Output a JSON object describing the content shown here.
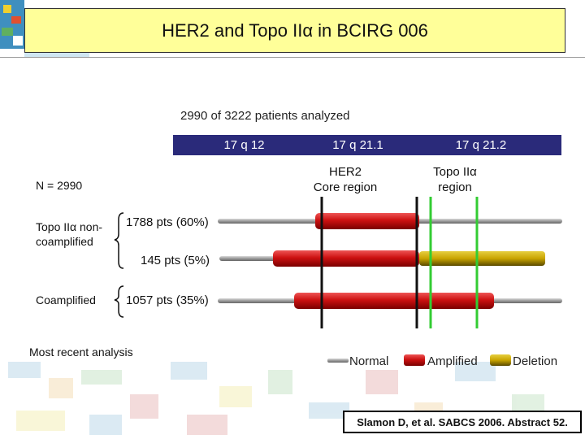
{
  "title": "HER2 and Topo IIα in BCIRG 006",
  "subtitle": "2990 of 3222 patients analyzed",
  "header": {
    "segments": [
      "17 q 12",
      "17 q 21.1",
      "17 q 21.2"
    ],
    "color": "#2a2a7a"
  },
  "regions": {
    "her2": "HER2\nCore region",
    "topo": "Topo IIα\nregion"
  },
  "n_label": "N = 2990",
  "groups": {
    "noncoamplified": "Topo IIα non-\ncoamplified",
    "coamplified": "Coamplified"
  },
  "rows": [
    {
      "label": "1788 pts (60%)"
    },
    {
      "label": "145 pts (5%)"
    },
    {
      "label": "1057 pts (35%)"
    }
  ],
  "note": "Most recent analysis",
  "legend": {
    "normal": "Normal",
    "amplified": "Amplified",
    "deletion": "Deletion"
  },
  "colors": {
    "normal": "#9a9a9a",
    "amplified": "#cc1111",
    "deletion": "#c9a400",
    "marker_her2": "#111111",
    "marker_topo": "#33cc33"
  },
  "reference": "Slamon D, et al. SABCS 2006. Abstract 52."
}
